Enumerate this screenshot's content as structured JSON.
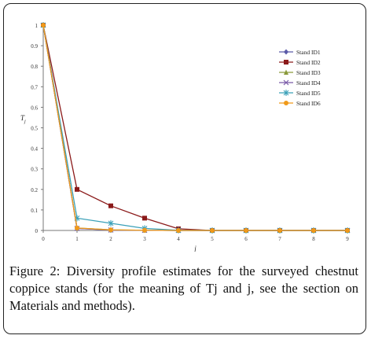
{
  "caption": "Figure 2: Diversity profile estimates for the surveyed chestnut coppice stands (for the meaning of Tj and j, see the section on Materials and methods).",
  "chart_data": {
    "type": "line",
    "xlabel": "j",
    "ylabel": "Tj",
    "x": [
      0,
      1,
      2,
      3,
      4,
      5,
      6,
      7,
      8,
      9
    ],
    "ylim": [
      0,
      1
    ],
    "xlim": [
      0,
      9
    ],
    "y_ticks": [
      "0",
      "0.1",
      "0.2",
      "0.3",
      "0.4",
      "0.5",
      "0.6",
      "0.7",
      "0.8",
      "0.9",
      "1"
    ],
    "x_ticks": [
      "0",
      "1",
      "2",
      "3",
      "4",
      "5",
      "6",
      "7",
      "8",
      "9"
    ],
    "legend_position": "top-right",
    "grid": false,
    "series": [
      {
        "name": "Stand ID1",
        "color": "#5a5aa8",
        "marker": "diamond",
        "values": [
          1,
          0.01,
          0.002,
          0.001,
          0,
          0,
          0,
          0,
          0,
          0
        ]
      },
      {
        "name": "Stand ID2",
        "color": "#8b1a1a",
        "marker": "square",
        "values": [
          1,
          0.2,
          0.12,
          0.06,
          0.008,
          0,
          0,
          0,
          0,
          0
        ]
      },
      {
        "name": "Stand ID3",
        "color": "#8a9a3a",
        "marker": "triangle",
        "values": [
          1,
          0.012,
          0.003,
          0.001,
          0,
          0,
          0,
          0,
          0,
          0
        ]
      },
      {
        "name": "Stand ID4",
        "color": "#7a5aa8",
        "marker": "x",
        "values": [
          1,
          0.01,
          0.002,
          0.001,
          0,
          0,
          0,
          0,
          0,
          0
        ]
      },
      {
        "name": "Stand ID5",
        "color": "#3aa0b8",
        "marker": "star",
        "values": [
          1,
          0.06,
          0.035,
          0.01,
          0.001,
          0,
          0,
          0,
          0,
          0
        ]
      },
      {
        "name": "Stand ID6",
        "color": "#f09a1a",
        "marker": "circle",
        "values": [
          1,
          0.012,
          0.003,
          0.001,
          0,
          0,
          0,
          0,
          0,
          0
        ]
      }
    ]
  }
}
